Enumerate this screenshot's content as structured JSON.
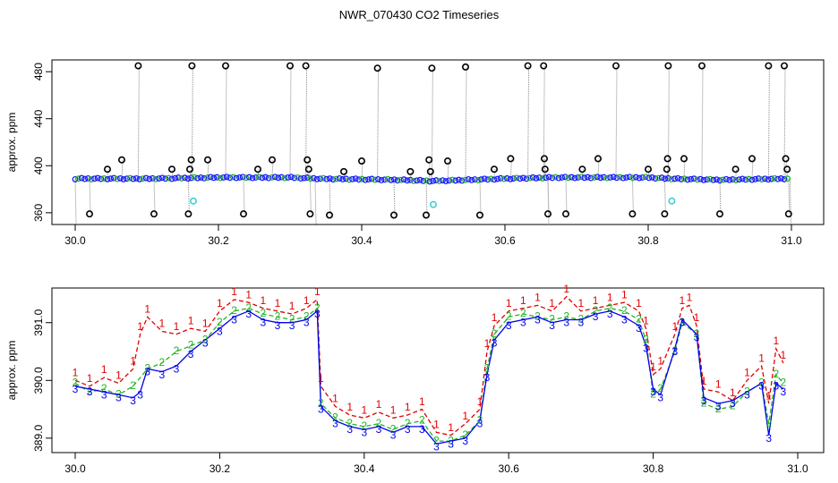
{
  "figure": {
    "title": "NWR_070430  CO2 Timeseries"
  },
  "chart_data": [
    {
      "type": "scatter",
      "title": "",
      "xlabel": "",
      "ylabel": "approx. ppm",
      "xlim": [
        30.0,
        31.0
      ],
      "ylim": [
        350,
        490
      ],
      "x_ticks": [
        "30.0",
        "30.2",
        "30.4",
        "30.6",
        "30.8",
        "31.0"
      ],
      "y_ticks": [
        "360",
        "400",
        "440",
        "480"
      ],
      "colors": {
        "main": "#1a1aff",
        "mid": "#22b422",
        "outlier": "#000000",
        "flagged": "#40d0d0",
        "spike_line": "#888888"
      },
      "baseline": [
        {
          "x": 30.0,
          "y": 389
        },
        {
          "x": 30.1,
          "y": 389
        },
        {
          "x": 30.2,
          "y": 390
        },
        {
          "x": 30.3,
          "y": 390
        },
        {
          "x": 30.34,
          "y": 389
        },
        {
          "x": 30.45,
          "y": 388
        },
        {
          "x": 30.5,
          "y": 387
        },
        {
          "x": 30.6,
          "y": 389
        },
        {
          "x": 30.67,
          "y": 390
        },
        {
          "x": 30.8,
          "y": 390
        },
        {
          "x": 30.83,
          "y": 389
        },
        {
          "x": 30.9,
          "y": 388
        },
        {
          "x": 30.99,
          "y": 389
        }
      ],
      "outliers": [
        {
          "x": 30.02,
          "y": 359
        },
        {
          "x": 30.045,
          "y": 397
        },
        {
          "x": 30.065,
          "y": 405
        },
        {
          "x": 30.088,
          "y": 485
        },
        {
          "x": 30.11,
          "y": 359
        },
        {
          "x": 30.135,
          "y": 397
        },
        {
          "x": 30.158,
          "y": 359
        },
        {
          "x": 30.16,
          "y": 397
        },
        {
          "x": 30.162,
          "y": 405
        },
        {
          "x": 30.163,
          "y": 485
        },
        {
          "x": 30.185,
          "y": 405
        },
        {
          "x": 30.21,
          "y": 485
        },
        {
          "x": 30.235,
          "y": 359
        },
        {
          "x": 30.255,
          "y": 397
        },
        {
          "x": 30.275,
          "y": 405
        },
        {
          "x": 30.3,
          "y": 485
        },
        {
          "x": 30.322,
          "y": 485
        },
        {
          "x": 30.324,
          "y": 405
        },
        {
          "x": 30.326,
          "y": 397
        },
        {
          "x": 30.328,
          "y": 359
        },
        {
          "x": 30.355,
          "y": 358
        },
        {
          "x": 30.375,
          "y": 395
        },
        {
          "x": 30.4,
          "y": 404
        },
        {
          "x": 30.422,
          "y": 483
        },
        {
          "x": 30.445,
          "y": 358
        },
        {
          "x": 30.468,
          "y": 395
        },
        {
          "x": 30.49,
          "y": 358
        },
        {
          "x": 30.494,
          "y": 405
        },
        {
          "x": 30.496,
          "y": 395
        },
        {
          "x": 30.498,
          "y": 483
        },
        {
          "x": 30.52,
          "y": 404
        },
        {
          "x": 30.545,
          "y": 484
        },
        {
          "x": 30.565,
          "y": 358
        },
        {
          "x": 30.585,
          "y": 397
        },
        {
          "x": 30.608,
          "y": 406
        },
        {
          "x": 30.632,
          "y": 485
        },
        {
          "x": 30.654,
          "y": 485
        },
        {
          "x": 30.655,
          "y": 406
        },
        {
          "x": 30.656,
          "y": 397
        },
        {
          "x": 30.66,
          "y": 359
        },
        {
          "x": 30.685,
          "y": 359
        },
        {
          "x": 30.708,
          "y": 397
        },
        {
          "x": 30.73,
          "y": 406
        },
        {
          "x": 30.755,
          "y": 485
        },
        {
          "x": 30.778,
          "y": 359
        },
        {
          "x": 30.8,
          "y": 397
        },
        {
          "x": 30.823,
          "y": 359
        },
        {
          "x": 30.826,
          "y": 397
        },
        {
          "x": 30.827,
          "y": 406
        },
        {
          "x": 30.828,
          "y": 485
        },
        {
          "x": 30.85,
          "y": 406
        },
        {
          "x": 30.875,
          "y": 485
        },
        {
          "x": 30.9,
          "y": 359
        },
        {
          "x": 30.922,
          "y": 397
        },
        {
          "x": 30.945,
          "y": 406
        },
        {
          "x": 30.968,
          "y": 485
        },
        {
          "x": 30.99,
          "y": 485
        },
        {
          "x": 30.992,
          "y": 406
        },
        {
          "x": 30.994,
          "y": 397
        },
        {
          "x": 30.996,
          "y": 359
        }
      ],
      "flagged": [
        {
          "x": 30.165,
          "y": 370
        },
        {
          "x": 30.5,
          "y": 367
        },
        {
          "x": 30.833,
          "y": 370
        }
      ]
    },
    {
      "type": "line",
      "title": "",
      "xlabel": "",
      "ylabel": "approx. ppm",
      "xlim": [
        30.0,
        31.0
      ],
      "ylim": [
        388.75,
        391.6
      ],
      "x_ticks": [
        "30.0",
        "30.2",
        "30.4",
        "30.6",
        "30.8",
        "31.0"
      ],
      "y_ticks": [
        "389.0",
        "390.0",
        "391.0"
      ],
      "series": [
        {
          "name": "1",
          "color": "#e00000",
          "points": [
            [
              30.0,
              390.0
            ],
            [
              30.02,
              389.9
            ],
            [
              30.04,
              390.05
            ],
            [
              30.06,
              389.95
            ],
            [
              30.08,
              390.2
            ],
            [
              30.09,
              390.8
            ],
            [
              30.1,
              391.1
            ],
            [
              30.12,
              390.85
            ],
            [
              30.14,
              390.8
            ],
            [
              30.16,
              390.9
            ],
            [
              30.18,
              390.85
            ],
            [
              30.2,
              391.2
            ],
            [
              30.22,
              391.4
            ],
            [
              30.24,
              391.35
            ],
            [
              30.26,
              391.25
            ],
            [
              30.28,
              391.2
            ],
            [
              30.3,
              391.15
            ],
            [
              30.32,
              391.25
            ],
            [
              30.335,
              391.4
            ],
            [
              30.34,
              389.9
            ],
            [
              30.36,
              389.55
            ],
            [
              30.38,
              389.4
            ],
            [
              30.4,
              389.35
            ],
            [
              30.42,
              389.45
            ],
            [
              30.44,
              389.35
            ],
            [
              30.46,
              389.4
            ],
            [
              30.48,
              389.5
            ],
            [
              30.5,
              389.1
            ],
            [
              30.52,
              389.05
            ],
            [
              30.54,
              389.25
            ],
            [
              30.56,
              389.5
            ],
            [
              30.57,
              390.5
            ],
            [
              30.58,
              390.95
            ],
            [
              30.6,
              391.2
            ],
            [
              30.62,
              391.25
            ],
            [
              30.64,
              391.3
            ],
            [
              30.66,
              391.2
            ],
            [
              30.68,
              391.45
            ],
            [
              30.7,
              391.2
            ],
            [
              30.72,
              391.25
            ],
            [
              30.74,
              391.3
            ],
            [
              30.76,
              391.35
            ],
            [
              30.78,
              391.2
            ],
            [
              30.79,
              390.9
            ],
            [
              30.8,
              390.1
            ],
            [
              30.81,
              390.2
            ],
            [
              30.83,
              390.8
            ],
            [
              30.84,
              391.25
            ],
            [
              30.85,
              391.3
            ],
            [
              30.86,
              390.95
            ],
            [
              30.87,
              389.85
            ],
            [
              30.89,
              389.8
            ],
            [
              30.91,
              389.65
            ],
            [
              30.93,
              390.0
            ],
            [
              30.95,
              390.25
            ],
            [
              30.96,
              389.6
            ],
            [
              30.97,
              390.55
            ],
            [
              30.98,
              390.3
            ]
          ]
        },
        {
          "name": "2",
          "color": "#22b422",
          "points": [
            [
              30.0,
              389.95
            ],
            [
              30.02,
              389.8
            ],
            [
              30.04,
              389.85
            ],
            [
              30.06,
              389.75
            ],
            [
              30.08,
              389.9
            ],
            [
              30.1,
              390.2
            ],
            [
              30.12,
              390.3
            ],
            [
              30.14,
              390.5
            ],
            [
              30.16,
              390.6
            ],
            [
              30.18,
              390.7
            ],
            [
              30.2,
              391.0
            ],
            [
              30.22,
              391.2
            ],
            [
              30.24,
              391.25
            ],
            [
              30.26,
              391.15
            ],
            [
              30.28,
              391.1
            ],
            [
              30.3,
              391.05
            ],
            [
              30.32,
              391.1
            ],
            [
              30.335,
              391.25
            ],
            [
              30.34,
              389.6
            ],
            [
              30.36,
              389.35
            ],
            [
              30.38,
              389.25
            ],
            [
              30.4,
              389.2
            ],
            [
              30.42,
              389.25
            ],
            [
              30.44,
              389.15
            ],
            [
              30.46,
              389.25
            ],
            [
              30.48,
              389.3
            ],
            [
              30.5,
              388.95
            ],
            [
              30.52,
              388.95
            ],
            [
              30.54,
              389.05
            ],
            [
              30.56,
              389.3
            ],
            [
              30.57,
              390.2
            ],
            [
              30.58,
              390.8
            ],
            [
              30.6,
              391.1
            ],
            [
              30.62,
              391.15
            ],
            [
              30.64,
              391.1
            ],
            [
              30.66,
              391.05
            ],
            [
              30.68,
              391.1
            ],
            [
              30.7,
              391.05
            ],
            [
              30.72,
              391.2
            ],
            [
              30.74,
              391.25
            ],
            [
              30.76,
              391.2
            ],
            [
              30.78,
              391.05
            ],
            [
              30.79,
              390.7
            ],
            [
              30.8,
              389.75
            ],
            [
              30.81,
              389.85
            ],
            [
              30.83,
              390.5
            ],
            [
              30.84,
              391.0
            ],
            [
              30.86,
              390.8
            ],
            [
              30.87,
              389.6
            ],
            [
              30.89,
              389.5
            ],
            [
              30.91,
              389.55
            ],
            [
              30.93,
              389.8
            ],
            [
              30.95,
              389.95
            ],
            [
              30.96,
              389.25
            ],
            [
              30.97,
              390.1
            ],
            [
              30.98,
              389.95
            ]
          ]
        },
        {
          "name": "3",
          "color": "#0000ee",
          "points": [
            [
              30.0,
              389.9
            ],
            [
              30.02,
              389.85
            ],
            [
              30.04,
              389.8
            ],
            [
              30.06,
              389.75
            ],
            [
              30.08,
              389.7
            ],
            [
              30.09,
              389.8
            ],
            [
              30.1,
              390.2
            ],
            [
              30.12,
              390.15
            ],
            [
              30.14,
              390.25
            ],
            [
              30.16,
              390.5
            ],
            [
              30.18,
              390.7
            ],
            [
              30.2,
              390.9
            ],
            [
              30.22,
              391.1
            ],
            [
              30.24,
              391.2
            ],
            [
              30.26,
              391.05
            ],
            [
              30.28,
              391.0
            ],
            [
              30.3,
              391.0
            ],
            [
              30.32,
              391.05
            ],
            [
              30.335,
              391.2
            ],
            [
              30.34,
              389.55
            ],
            [
              30.36,
              389.3
            ],
            [
              30.38,
              389.2
            ],
            [
              30.4,
              389.15
            ],
            [
              30.42,
              389.2
            ],
            [
              30.44,
              389.1
            ],
            [
              30.46,
              389.2
            ],
            [
              30.48,
              389.2
            ],
            [
              30.5,
              388.9
            ],
            [
              30.52,
              388.95
            ],
            [
              30.54,
              389.0
            ],
            [
              30.56,
              389.3
            ],
            [
              30.57,
              390.1
            ],
            [
              30.58,
              390.7
            ],
            [
              30.6,
              391.0
            ],
            [
              30.62,
              391.05
            ],
            [
              30.64,
              391.1
            ],
            [
              30.66,
              391.0
            ],
            [
              30.68,
              391.05
            ],
            [
              30.7,
              391.05
            ],
            [
              30.72,
              391.15
            ],
            [
              30.74,
              391.2
            ],
            [
              30.76,
              391.1
            ],
            [
              30.78,
              390.95
            ],
            [
              30.79,
              390.6
            ],
            [
              30.8,
              389.85
            ],
            [
              30.81,
              389.75
            ],
            [
              30.83,
              390.55
            ],
            [
              30.84,
              391.05
            ],
            [
              30.86,
              390.8
            ],
            [
              30.87,
              389.7
            ],
            [
              30.89,
              389.6
            ],
            [
              30.91,
              389.65
            ],
            [
              30.93,
              389.8
            ],
            [
              30.95,
              389.95
            ],
            [
              30.96,
              389.05
            ],
            [
              30.97,
              389.95
            ],
            [
              30.98,
              389.85
            ]
          ]
        }
      ]
    }
  ]
}
